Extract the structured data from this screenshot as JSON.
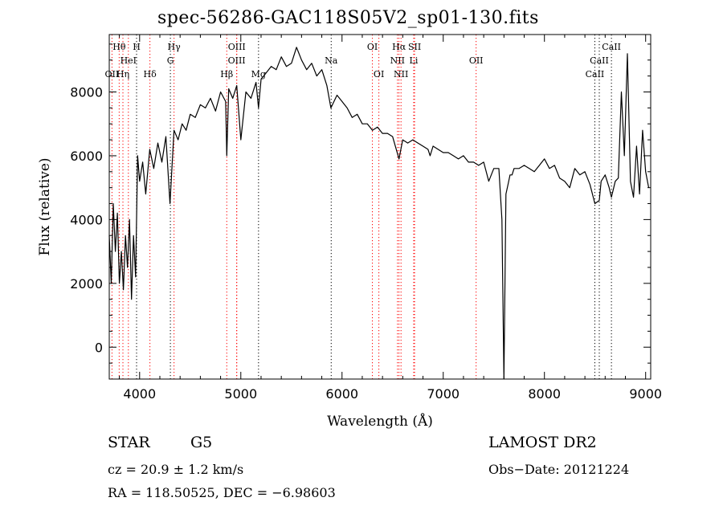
{
  "chart_data": {
    "type": "line",
    "title": "spec-56286-GAC118S05V2_sp01-130.fits",
    "xlabel": "Wavelength (Å)",
    "ylabel": "Flux (relative)",
    "xlim": [
      3700,
      9050
    ],
    "ylim": [
      -1000,
      9800
    ],
    "xticks": [
      4000,
      5000,
      6000,
      7000,
      8000,
      9000
    ],
    "yticks": [
      0,
      2000,
      4000,
      6000,
      8000
    ],
    "grid": false,
    "series": [
      {
        "x": [
          3700,
          3720,
          3740,
          3760,
          3780,
          3800,
          3820,
          3840,
          3860,
          3880,
          3900,
          3920,
          3940,
          3960,
          3980,
          4000,
          4030,
          4060,
          4100,
          4140,
          4180,
          4220,
          4260,
          4300,
          4340,
          4380,
          4420,
          4460,
          4500,
          4550,
          4600,
          4650,
          4700,
          4750,
          4800,
          4850,
          4861,
          4880,
          4920,
          4960,
          5000,
          5050,
          5100,
          5150,
          5175,
          5200,
          5250,
          5300,
          5350,
          5400,
          5450,
          5500,
          5550,
          5600,
          5650,
          5700,
          5750,
          5800,
          5850,
          5890,
          5950,
          6000,
          6050,
          6100,
          6150,
          6200,
          6250,
          6300,
          6350,
          6400,
          6450,
          6500,
          6563,
          6600,
          6650,
          6700,
          6750,
          6800,
          6850,
          6870,
          6900,
          6950,
          7000,
          7050,
          7100,
          7150,
          7200,
          7250,
          7300,
          7350,
          7400,
          7450,
          7500,
          7550,
          7580,
          7600,
          7620,
          7640,
          7660,
          7680,
          7700,
          7750,
          7800,
          7850,
          7900,
          7950,
          8000,
          8050,
          8100,
          8150,
          8200,
          8250,
          8300,
          8350,
          8400,
          8450,
          8498,
          8542,
          8560,
          8600,
          8640,
          8662,
          8700,
          8730,
          8760,
          8790,
          8820,
          8850,
          8880,
          8910,
          8940,
          8970,
          9000,
          9030
        ],
        "values": [
          3500,
          2000,
          4500,
          3000,
          4200,
          2000,
          3000,
          1800,
          3500,
          2500,
          4000,
          1500,
          3500,
          2200,
          6000,
          5200,
          5800,
          4800,
          6200,
          5600,
          6400,
          5800,
          6600,
          4500,
          6800,
          6500,
          7000,
          6800,
          7300,
          7200,
          7600,
          7500,
          7800,
          7400,
          8000,
          7700,
          6000,
          8100,
          7800,
          8200,
          6500,
          8000,
          7800,
          8300,
          7500,
          8400,
          8600,
          8800,
          8700,
          9100,
          8800,
          8900,
          9400,
          9000,
          8700,
          8900,
          8500,
          8700,
          8200,
          7500,
          7900,
          7700,
          7500,
          7200,
          7300,
          7000,
          7000,
          6800,
          6900,
          6700,
          6700,
          6600,
          5900,
          6500,
          6400,
          6500,
          6400,
          6300,
          6200,
          6000,
          6300,
          6200,
          6100,
          6100,
          6000,
          5900,
          6000,
          5800,
          5800,
          5700,
          5800,
          5200,
          5600,
          5600,
          4000,
          -1000,
          4800,
          5100,
          5400,
          5400,
          5600,
          5600,
          5700,
          5600,
          5500,
          5700,
          5900,
          5600,
          5700,
          5300,
          5200,
          5000,
          5600,
          5400,
          5500,
          5100,
          4500,
          4600,
          5200,
          5400,
          5000,
          4700,
          5200,
          5300,
          8000,
          6000,
          9200,
          5200,
          4700,
          6300,
          4800,
          6800,
          5500,
          5000
        ]
      }
    ],
    "lines": [
      {
        "name": "Hθ",
        "x": 3798,
        "row": 1,
        "color": "#ff0000"
      },
      {
        "name": "H",
        "x": 3970,
        "row": 1,
        "color": "#000000"
      },
      {
        "name": "Hγ",
        "x": 4340,
        "row": 1,
        "color": "#ff0000"
      },
      {
        "name": "OIII",
        "x": 4960,
        "row": 1,
        "color": "#ff0000"
      },
      {
        "name": "OI",
        "x": 6300,
        "row": 1,
        "color": "#ff0000"
      },
      {
        "name": "Hα",
        "x": 6563,
        "row": 1,
        "color": "#ff0000"
      },
      {
        "name": "SII",
        "x": 6717,
        "row": 1,
        "color": "#ff0000"
      },
      {
        "name": "CaII",
        "x": 8662,
        "row": 1,
        "color": "#000000"
      },
      {
        "name": "HeI",
        "x": 3889,
        "row": 2,
        "color": "#ff0000"
      },
      {
        "name": "G",
        "x": 4304,
        "row": 2,
        "color": "#000000"
      },
      {
        "name": "OIII",
        "x": 4959,
        "row": 2,
        "color": "#ff0000"
      },
      {
        "name": "Na",
        "x": 5893,
        "row": 2,
        "color": "#000000"
      },
      {
        "name": "NII",
        "x": 6548,
        "row": 2,
        "color": "#ff0000"
      },
      {
        "name": "Li",
        "x": 6708,
        "row": 2,
        "color": "#ff0000"
      },
      {
        "name": "OII",
        "x": 7325,
        "row": 2,
        "color": "#ff0000"
      },
      {
        "name": "CaII",
        "x": 8542,
        "row": 2,
        "color": "#000000"
      },
      {
        "name": "OII",
        "x": 3727,
        "row": 3,
        "color": "#ff0000"
      },
      {
        "name": "Hη",
        "x": 3835,
        "row": 3,
        "color": "#ff0000"
      },
      {
        "name": "Hδ",
        "x": 4102,
        "row": 3,
        "color": "#ff0000"
      },
      {
        "name": "Hβ",
        "x": 4861,
        "row": 3,
        "color": "#ff0000"
      },
      {
        "name": "Mg",
        "x": 5175,
        "row": 3,
        "color": "#000000"
      },
      {
        "name": "OI",
        "x": 6364,
        "row": 3,
        "color": "#ff0000"
      },
      {
        "name": "NII",
        "x": 6583,
        "row": 3,
        "color": "#ff0000"
      },
      {
        "name": "CaII",
        "x": 8498,
        "row": 3,
        "color": "#000000"
      }
    ]
  },
  "info": {
    "class": "STAR",
    "subclass": "G5",
    "survey": "LAMOST DR2",
    "cz": "cz = 20.9 ± 1.2 km/s",
    "obs_date": "Obs−Date: 20121224",
    "radec": "RA = 118.50525, DEC =  −6.98603"
  }
}
